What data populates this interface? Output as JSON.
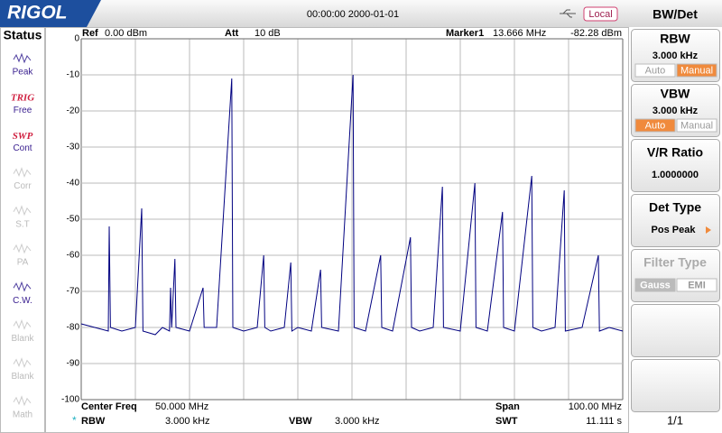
{
  "header": {
    "logo": "RIGOL",
    "datetime": "00:00:00 2000-01-01",
    "mode": "Local"
  },
  "status_panel": {
    "title": "Status",
    "items": [
      {
        "label": "Peak",
        "active": true
      },
      {
        "tag": "TRIG",
        "label": "Free",
        "active": true
      },
      {
        "tag": "SWP",
        "label": "Cont",
        "active": true
      },
      {
        "label": "Corr",
        "active": false
      },
      {
        "label": "S.T",
        "active": false
      },
      {
        "label": "PA",
        "active": false
      },
      {
        "label": "C.W.",
        "active": true
      },
      {
        "label": "Blank",
        "active": false
      },
      {
        "label": "Blank",
        "active": false
      },
      {
        "label": "Math",
        "active": false
      }
    ]
  },
  "plot_header": {
    "ref_label": "Ref",
    "ref_value": "0.00 dBm",
    "att_label": "Att",
    "att_value": "10 dB",
    "marker_label": "Marker1",
    "marker_freq": "13.666 MHz",
    "marker_level": "-82.28 dBm"
  },
  "chart_data": {
    "type": "line",
    "color": "#000080",
    "grid": true,
    "x": [
      0,
      2.5,
      5,
      5.17,
      5.4,
      7.5,
      10,
      11.17,
      11.4,
      13.666,
      15,
      16.3,
      16.5,
      16.7,
      17.3,
      17.5,
      20,
      22.5,
      22.7,
      25,
      27.8,
      28,
      30,
      32.5,
      33.7,
      33.9,
      35,
      37.5,
      38.7,
      38.9,
      40,
      42.5,
      44.2,
      44.4,
      47.5,
      50.2,
      50.4,
      52.5,
      55.3,
      55.5,
      57.5,
      60.8,
      61,
      62.5,
      65,
      66.7,
      66.9,
      70,
      72.7,
      72.9,
      75,
      77.8,
      78,
      80,
      83.2,
      83.4,
      85,
      87.5,
      89.2,
      89.4,
      92.5,
      95.5,
      95.7,
      97.5,
      100
    ],
    "values": [
      -79,
      -80,
      -81,
      -52,
      -80,
      -81,
      -80,
      -47,
      -81,
      -82,
      -80,
      -81,
      -69,
      -80,
      -61,
      -80,
      -81,
      -69,
      -80,
      -80,
      -11,
      -80,
      -81,
      -80,
      -60,
      -80,
      -81,
      -80,
      -62,
      -81,
      -80,
      -81,
      -64,
      -80,
      -81,
      -10,
      -80,
      -81,
      -60,
      -80,
      -81,
      -55,
      -80,
      -81,
      -80,
      -41,
      -80,
      -81,
      -40,
      -80,
      -81,
      -48,
      -80,
      -81,
      -38,
      -80,
      -81,
      -80,
      -42,
      -81,
      -80,
      -60,
      -81,
      -80,
      -81
    ],
    "xlim": [
      0,
      100
    ],
    "ylim": [
      -100,
      0
    ],
    "yticks": [
      0,
      -10,
      -20,
      -30,
      -40,
      -50,
      -60,
      -70,
      -80,
      -90,
      -100
    ]
  },
  "footer": {
    "center_label": "Center Freq",
    "center_value": "50.000 MHz",
    "span_label": "Span",
    "span_value": "100.00 MHz",
    "rbw_flag": "*",
    "rbw_label": "RBW",
    "rbw_value": "3.000 kHz",
    "vbw_label": "VBW",
    "vbw_value": "3.000 kHz",
    "swt_label": "SWT",
    "swt_value": "11.111 s"
  },
  "menu": {
    "title": "BW/Det",
    "page": "1/1",
    "buttons": [
      {
        "label": "RBW",
        "value": "3.000 kHz",
        "options": [
          "Auto",
          "Manual"
        ],
        "selected": 1,
        "enabled": true
      },
      {
        "label": "VBW",
        "value": "3.000 kHz",
        "options": [
          "Auto",
          "Manual"
        ],
        "selected": 0,
        "enabled": true
      },
      {
        "label": "V/R Ratio",
        "value": "1.0000000",
        "enabled": true
      },
      {
        "label": "Det Type",
        "value": "Pos Peak",
        "enabled": true
      },
      {
        "label": "Filter Type",
        "options": [
          "Gauss",
          "EMI"
        ],
        "selected": 0,
        "enabled": false
      }
    ]
  }
}
